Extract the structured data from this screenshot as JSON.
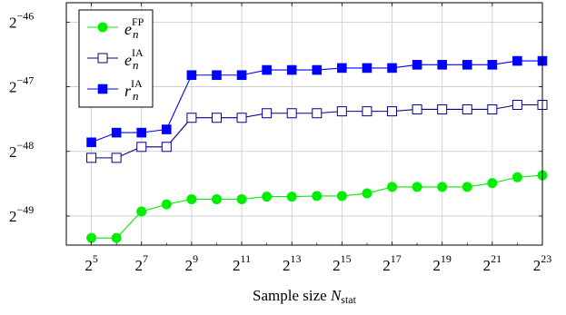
{
  "chart_data": {
    "type": "line",
    "xlabel_main": "Sample size ",
    "xlabel_var": "N",
    "xlabel_sub": "stat",
    "x_exponents": [
      5,
      6,
      7,
      8,
      9,
      10,
      11,
      12,
      13,
      14,
      15,
      16,
      17,
      18,
      19,
      20,
      21,
      22,
      23
    ],
    "x_tick_exponents": [
      5,
      7,
      9,
      11,
      13,
      15,
      17,
      19,
      21,
      23
    ],
    "x_tick_base": "2",
    "xlim_exponent": [
      4,
      23
    ],
    "ylim_exponent": [
      -49.45,
      -45.7
    ],
    "y_tick_exponents": [
      -46,
      -47,
      -48,
      -49
    ],
    "y_tick_base": "2",
    "grid": true,
    "legend_position": "top-left",
    "series": [
      {
        "name_var": "e",
        "name_sub": "n",
        "name_sup": "FP",
        "color": "#00ee00",
        "marker": "filled-circle",
        "values": [
          -49.34,
          -49.34,
          -48.93,
          -48.82,
          -48.74,
          -48.74,
          -48.74,
          -48.7,
          -48.7,
          -48.69,
          -48.69,
          -48.65,
          -48.55,
          -48.55,
          -48.55,
          -48.55,
          -48.49,
          -48.4,
          -48.37
        ]
      },
      {
        "name_var": "e",
        "name_sub": "n",
        "name_sup": "IA",
        "color": "#00008b",
        "marker": "open-square",
        "values": [
          -48.1,
          -48.1,
          -47.93,
          -47.93,
          -47.48,
          -47.48,
          -47.48,
          -47.41,
          -47.41,
          -47.41,
          -47.38,
          -47.38,
          -47.38,
          -47.35,
          -47.35,
          -47.35,
          -47.35,
          -47.28,
          -47.28
        ]
      },
      {
        "name_var": "r",
        "name_sub": "n",
        "name_sup": "IA",
        "color": "#0000ff",
        "marker": "filled-square",
        "values": [
          -47.86,
          -47.71,
          -47.71,
          -47.66,
          -46.82,
          -46.82,
          -46.82,
          -46.74,
          -46.74,
          -46.74,
          -46.71,
          -46.71,
          -46.71,
          -46.66,
          -46.66,
          -46.66,
          -46.66,
          -46.6,
          -46.6
        ]
      }
    ]
  }
}
